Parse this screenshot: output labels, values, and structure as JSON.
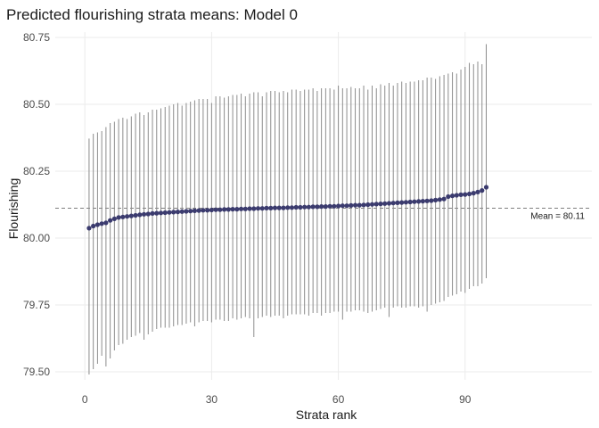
{
  "chart_data": {
    "type": "scatter",
    "title": "Predicted flourishing strata means: Model 0",
    "xlabel": "Strata rank",
    "ylabel": "Flourishing",
    "xlim": [
      -7,
      120
    ],
    "ylim": [
      79.47,
      80.77
    ],
    "x_ticks": [
      0,
      30,
      60,
      90
    ],
    "y_ticks": [
      79.5,
      79.75,
      80.0,
      80.25,
      80.5,
      80.75
    ],
    "y_tick_labels": [
      "79.50",
      "79.75",
      "80.00",
      "80.25",
      "80.50",
      "80.75"
    ],
    "grid": true,
    "reference_line": {
      "y": 80.112,
      "style": "dashed",
      "label": "Mean = 80.11"
    },
    "point_color": "#3b3b6e",
    "errorbar_color": "#8c8c8c",
    "x": [
      1,
      2,
      3,
      4,
      5,
      6,
      7,
      8,
      9,
      10,
      11,
      12,
      13,
      14,
      15,
      16,
      17,
      18,
      19,
      20,
      21,
      22,
      23,
      24,
      25,
      26,
      27,
      28,
      29,
      30,
      31,
      32,
      33,
      34,
      35,
      36,
      37,
      38,
      39,
      40,
      41,
      42,
      43,
      44,
      45,
      46,
      47,
      48,
      49,
      50,
      51,
      52,
      53,
      54,
      55,
      56,
      57,
      58,
      59,
      60,
      61,
      62,
      63,
      64,
      65,
      66,
      67,
      68,
      69,
      70,
      71,
      72,
      73,
      74,
      75,
      76,
      77,
      78,
      79,
      80,
      81,
      82,
      83,
      84,
      85,
      86,
      87,
      88,
      89,
      90,
      91,
      92,
      93,
      94,
      95
    ],
    "y": [
      80.037,
      80.045,
      80.05,
      80.054,
      80.057,
      80.066,
      80.072,
      80.077,
      80.079,
      80.081,
      80.083,
      80.085,
      80.087,
      80.089,
      80.09,
      80.092,
      80.093,
      80.094,
      80.095,
      80.096,
      80.097,
      80.098,
      80.099,
      80.1,
      80.101,
      80.102,
      80.103,
      80.104,
      80.104,
      80.105,
      80.106,
      80.106,
      80.107,
      80.107,
      80.108,
      80.108,
      80.109,
      80.109,
      80.11,
      80.11,
      80.111,
      80.111,
      80.112,
      80.112,
      80.113,
      80.113,
      80.113,
      80.114,
      80.114,
      80.115,
      80.115,
      80.116,
      80.116,
      80.117,
      80.117,
      80.118,
      80.118,
      80.119,
      80.119,
      80.12,
      80.121,
      80.121,
      80.122,
      80.123,
      80.123,
      80.124,
      80.125,
      80.126,
      80.127,
      80.128,
      80.129,
      80.13,
      80.131,
      80.132,
      80.133,
      80.134,
      80.135,
      80.136,
      80.137,
      80.138,
      80.139,
      80.14,
      80.142,
      80.144,
      80.146,
      80.155,
      80.158,
      80.16,
      80.162,
      80.163,
      80.165,
      80.168,
      80.172,
      80.178,
      80.19
    ],
    "upper": [
      80.372,
      80.39,
      80.395,
      80.4,
      80.415,
      80.43,
      80.435,
      80.445,
      80.45,
      80.445,
      80.455,
      80.465,
      80.47,
      80.46,
      80.47,
      80.48,
      80.48,
      80.485,
      80.49,
      80.495,
      80.5,
      80.505,
      80.495,
      80.505,
      80.51,
      80.515,
      80.52,
      80.52,
      80.52,
      80.505,
      80.53,
      80.53,
      80.525,
      80.53,
      80.535,
      80.535,
      80.54,
      80.53,
      80.54,
      80.545,
      80.545,
      80.53,
      80.545,
      80.55,
      80.55,
      80.545,
      80.55,
      80.545,
      80.555,
      80.555,
      80.55,
      80.555,
      80.555,
      80.56,
      80.55,
      80.56,
      80.56,
      80.56,
      80.555,
      80.57,
      80.56,
      80.56,
      80.565,
      80.56,
      80.56,
      80.57,
      80.555,
      80.57,
      80.56,
      80.575,
      80.57,
      80.58,
      80.57,
      80.58,
      80.585,
      80.58,
      80.585,
      80.585,
      80.59,
      80.59,
      80.6,
      80.6,
      80.595,
      80.605,
      80.61,
      80.615,
      80.62,
      80.615,
      80.63,
      80.64,
      80.655,
      80.65,
      80.66,
      80.65,
      80.725
    ],
    "lower": [
      79.49,
      79.51,
      79.53,
      79.56,
      79.52,
      79.55,
      79.58,
      79.6,
      79.605,
      79.62,
      79.63,
      79.635,
      79.645,
      79.62,
      79.64,
      79.65,
      79.66,
      79.665,
      79.665,
      79.665,
      79.67,
      79.675,
      79.675,
      79.68,
      79.685,
      79.67,
      79.685,
      79.69,
      79.69,
      79.685,
      79.695,
      79.695,
      79.69,
      79.69,
      79.7,
      79.695,
      79.7,
      79.705,
      79.7,
      79.63,
      79.7,
      79.705,
      79.71,
      79.705,
      79.71,
      79.71,
      79.7,
      79.71,
      79.715,
      79.715,
      79.715,
      79.715,
      79.71,
      79.72,
      79.72,
      79.71,
      79.72,
      79.72,
      79.725,
      79.725,
      79.695,
      79.725,
      79.725,
      79.73,
      79.73,
      79.725,
      79.72,
      79.725,
      79.73,
      79.735,
      79.74,
      79.705,
      79.74,
      79.745,
      79.74,
      79.74,
      79.745,
      79.745,
      79.74,
      79.745,
      79.725,
      79.75,
      79.755,
      79.76,
      79.765,
      79.78,
      79.785,
      79.79,
      79.8,
      79.795,
      79.81,
      79.82,
      79.82,
      79.83,
      79.85
    ]
  }
}
